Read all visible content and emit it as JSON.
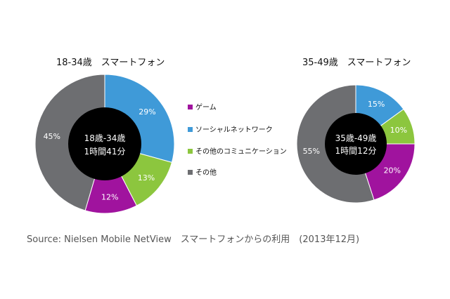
{
  "chart_data": [
    {
      "type": "pie",
      "title": "18-34歳　スマートフォン",
      "center_label": [
        "18歳-34歳",
        "1時間41分"
      ],
      "categories": [
        "ゲーム",
        "ソーシャルネットワーク",
        "その他のコミュニケーション",
        "その他"
      ],
      "values": [
        12,
        29,
        13,
        45
      ],
      "value_labels": [
        "12%",
        "29%",
        "13%",
        "45%"
      ]
    },
    {
      "type": "pie",
      "title": "35-49歳　スマートフォン",
      "center_label": [
        "35歳-49歳",
        "1時間12分"
      ],
      "categories": [
        "ゲーム",
        "ソーシャルネットワーク",
        "その他のコミュニケーション",
        "その他"
      ],
      "values": [
        20,
        15,
        10,
        55
      ],
      "value_labels": [
        "20%",
        "15%",
        "10%",
        "55%"
      ]
    }
  ],
  "legend": [
    {
      "label": "ゲーム",
      "color": "#A0139E"
    },
    {
      "label": "ソーシャルネットワーク",
      "color": "#3F9AD8"
    },
    {
      "label": "その他のコミュニケーション",
      "color": "#8CC63E"
    },
    {
      "label": "その他",
      "color": "#6D6E71"
    }
  ],
  "center_color": "#000000",
  "source": "Source: Nielsen Mobile NetView　スマートフォンからの利用　(2013年12月)"
}
